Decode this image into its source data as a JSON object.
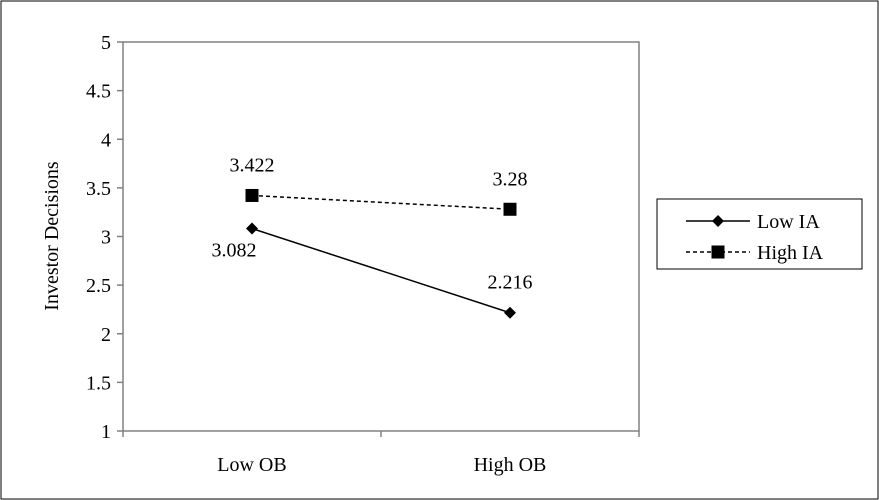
{
  "chart_data": {
    "type": "line",
    "title": "",
    "xlabel": "",
    "ylabel": "Investor Decisions",
    "categories": [
      "Low OB",
      "High OB"
    ],
    "ylim": [
      1,
      5
    ],
    "yticks": [
      "1",
      "1.5",
      "2",
      "2.5",
      "3",
      "3.5",
      "4",
      "4.5",
      "5"
    ],
    "grid": false,
    "legend_position": "right",
    "series": [
      {
        "name": "Low IA",
        "values": [
          3.082,
          2.216
        ],
        "labels": [
          "3.082",
          "2.216"
        ],
        "marker": "diamond",
        "line_style": "solid",
        "color": "#000000"
      },
      {
        "name": "High IA",
        "values": [
          3.422,
          3.28
        ],
        "labels": [
          "3.422",
          "3.28"
        ],
        "marker": "square",
        "line_style": "dashed",
        "color": "#000000"
      }
    ]
  }
}
